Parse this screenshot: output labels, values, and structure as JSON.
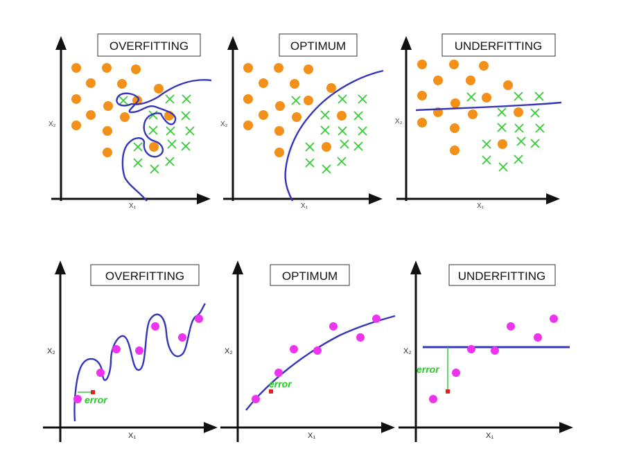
{
  "colors": {
    "class_a": "#f39019",
    "class_b": "#33cc33",
    "regression_point": "#ee33ee",
    "boundary": "#3535b8",
    "error": "#22cc22",
    "error_point": "#dd2222"
  },
  "classification": {
    "x_label": "X₁",
    "y_label": "X₂",
    "panels": [
      {
        "title": "OVERFITTING"
      },
      {
        "title": "OPTIMUM"
      },
      {
        "title": "UNDERFITTING"
      }
    ]
  },
  "regression": {
    "x_label": "X₁",
    "y_label": "X₂",
    "error_label": "error",
    "panels": [
      {
        "title": "OVERFITTING"
      },
      {
        "title": "OPTIMUM"
      },
      {
        "title": "UNDERFITTING"
      }
    ]
  }
}
